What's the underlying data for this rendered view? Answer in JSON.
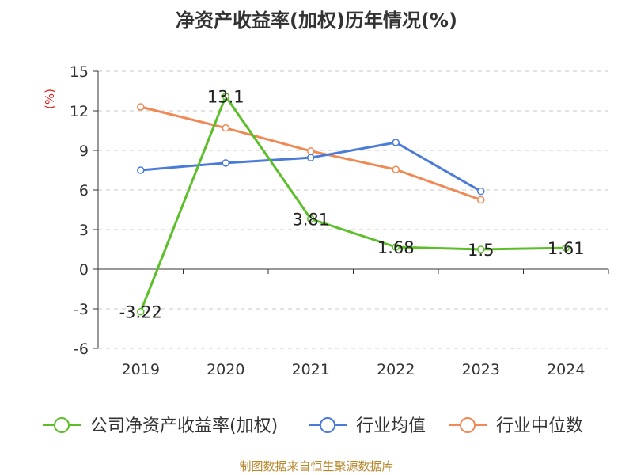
{
  "chart_data": {
    "type": "line",
    "title": "净资产收益率(加权)历年情况(%)",
    "ylabel": "(%)",
    "xlabel": "",
    "categories": [
      "2019",
      "2020",
      "2021",
      "2022",
      "2023",
      "2024"
    ],
    "ylim": [
      -6,
      15
    ],
    "yticks": [
      -6,
      -3,
      0,
      3,
      6,
      9,
      12,
      15
    ],
    "grid": true,
    "legend_position": "bottom",
    "series": [
      {
        "name": "公司净资产收益率(加权)",
        "color": "#5cbf2a",
        "values": [
          -3.22,
          13.1,
          3.81,
          1.68,
          1.5,
          1.61
        ],
        "labels": [
          "-3.22",
          "13.1",
          "3.81",
          "1.68",
          "1.5",
          "1.61"
        ]
      },
      {
        "name": "行业均值",
        "color": "#4b7bd9",
        "values": [
          7.5,
          8.05,
          8.45,
          9.6,
          5.9,
          null
        ]
      },
      {
        "name": "行业中位数",
        "color": "#f08a55",
        "values": [
          12.3,
          10.7,
          8.95,
          7.55,
          5.25,
          null
        ]
      }
    ]
  },
  "footer": {
    "source": "制图数据来自恒生聚源数据库"
  }
}
